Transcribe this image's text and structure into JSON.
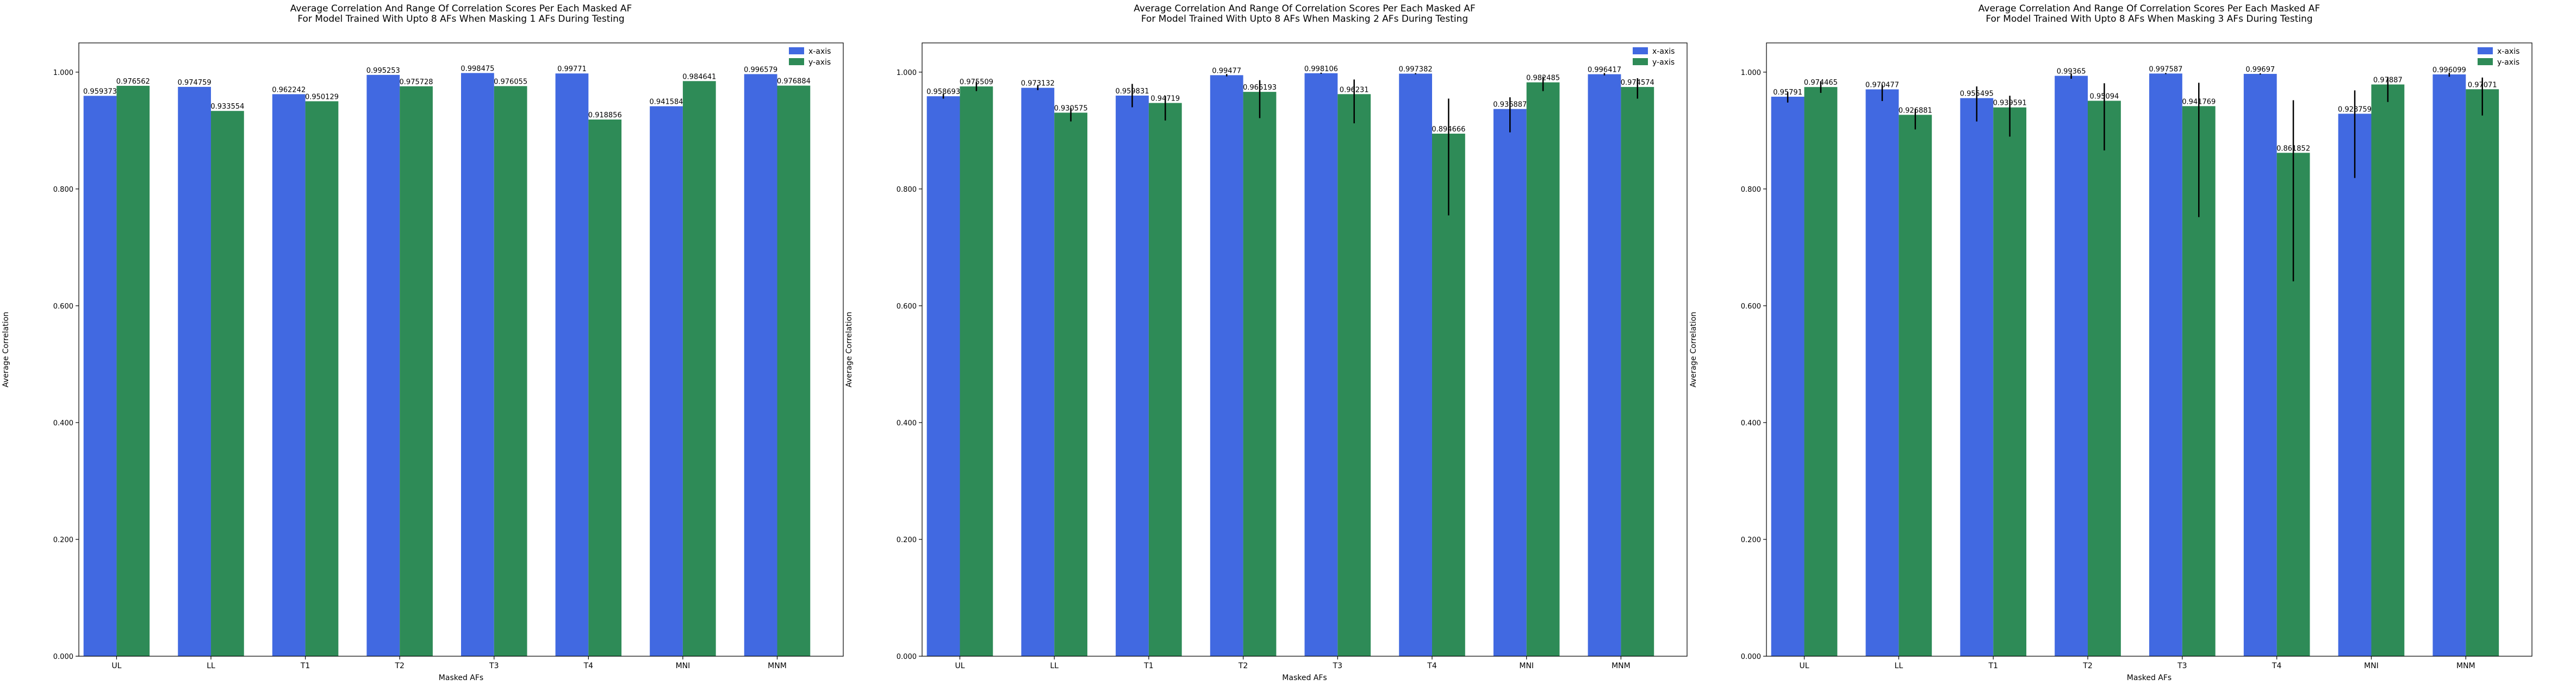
{
  "chart_data": [
    {
      "type": "bar",
      "title": "Average Correlation And Range Of Correlation Scores Per Each Masked AF\nFor Model Trained With Upto 8 AFs When Masking 1 AFs During Testing",
      "xlabel": "Masked AFs",
      "ylabel": "Average Correlation",
      "categories": [
        "UL",
        "LL",
        "T1",
        "T2",
        "T3",
        "T4",
        "MNI",
        "MNM"
      ],
      "ylim": [
        0,
        1.05
      ],
      "yticks": [
        "0.000",
        "0.200",
        "0.400",
        "0.600",
        "0.800",
        "1.000"
      ],
      "legend_position": "top-right",
      "grid": false,
      "series": [
        {
          "name": "x-axis",
          "color": "#4169e1",
          "values": [
            0.959373,
            0.974759,
            0.962242,
            0.995253,
            0.998475,
            0.99771,
            0.941584,
            0.996579
          ],
          "labels": [
            "0.959373",
            "0.974759",
            "0.962242",
            "0.995253",
            "0.998475",
            "0.99771",
            "0.941584",
            "0.996579"
          ],
          "err_low": [
            0,
            0,
            0,
            0,
            0,
            0,
            0,
            0
          ],
          "err_high": [
            0,
            0,
            0,
            0,
            0,
            0,
            0,
            0
          ]
        },
        {
          "name": "y-axis",
          "color": "#2e8b57",
          "values": [
            0.976562,
            0.933554,
            0.950129,
            0.975728,
            0.976055,
            0.918856,
            0.984641,
            0.976884
          ],
          "labels": [
            "0.976562",
            "0.933554",
            "0.950129",
            "0.975728",
            "0.976055",
            "0.918856",
            "0.984641",
            "0.976884"
          ],
          "err_low": [
            0,
            0,
            0,
            0,
            0,
            0,
            0,
            0
          ],
          "err_high": [
            0,
            0,
            0,
            0,
            0,
            0,
            0,
            0
          ]
        }
      ]
    },
    {
      "type": "bar",
      "title": "Average Correlation And Range Of Correlation Scores Per Each Masked AF\nFor Model Trained With Upto 8 AFs When Masking 2 AFs During Testing",
      "xlabel": "Masked AFs",
      "ylabel": "Average Correlation",
      "categories": [
        "UL",
        "LL",
        "T1",
        "T2",
        "T3",
        "T4",
        "MNI",
        "MNM"
      ],
      "ylim": [
        0,
        1.05
      ],
      "yticks": [
        "0.000",
        "0.200",
        "0.400",
        "0.600",
        "0.800",
        "1.000"
      ],
      "legend_position": "top-right",
      "grid": false,
      "series": [
        {
          "name": "x-axis",
          "color": "#4169e1",
          "values": [
            0.958693,
            0.973132,
            0.959831,
            0.99477,
            0.998106,
            0.997382,
            0.936887,
            0.996417
          ],
          "labels": [
            "0.958693",
            "0.973132",
            "0.959831",
            "0.99477",
            "0.998106",
            "0.997382",
            "0.936887",
            "0.996417"
          ],
          "err_low": [
            0.004,
            0.004,
            0.02,
            0.002,
            0.001,
            0.001,
            0.04,
            0.002
          ],
          "err_high": [
            0.004,
            0.004,
            0.02,
            0.002,
            0.001,
            0.001,
            0.02,
            0.002
          ]
        },
        {
          "name": "y-axis",
          "color": "#2e8b57",
          "values": [
            0.975509,
            0.930575,
            0.94719,
            0.966193,
            0.96231,
            0.894666,
            0.982485,
            0.974574
          ],
          "labels": [
            "0.975509",
            "0.930575",
            "0.94719",
            "0.966193",
            "0.96231",
            "0.894666",
            "0.982485",
            "0.974574"
          ],
          "err_low": [
            0.008,
            0.015,
            0.03,
            0.045,
            0.05,
            0.14,
            0.015,
            0.02
          ],
          "err_high": [
            0.008,
            0.008,
            0.012,
            0.02,
            0.025,
            0.06,
            0.01,
            0.015
          ]
        }
      ]
    },
    {
      "type": "bar",
      "title": "Average Correlation And Range Of Correlation Scores Per Each Masked AF\nFor Model Trained With Upto 8 AFs When Masking 3 AFs During Testing",
      "xlabel": "Masked AFs",
      "ylabel": "Average Correlation",
      "categories": [
        "UL",
        "LL",
        "T1",
        "T2",
        "T3",
        "T4",
        "MNI",
        "MNM"
      ],
      "ylim": [
        0,
        1.05
      ],
      "yticks": [
        "0.000",
        "0.200",
        "0.400",
        "0.600",
        "0.800",
        "1.000"
      ],
      "legend_position": "top-right",
      "grid": false,
      "series": [
        {
          "name": "x-axis",
          "color": "#4169e1",
          "values": [
            0.95791,
            0.970477,
            0.955495,
            0.99365,
            0.997587,
            0.99697,
            0.928759,
            0.996099
          ],
          "labels": [
            "0.95791",
            "0.970477",
            "0.955495",
            "0.99365",
            "0.997587",
            "0.99697",
            "0.928759",
            "0.996099"
          ],
          "err_low": [
            0.01,
            0.02,
            0.04,
            0.005,
            0.001,
            0.001,
            0.11,
            0.004
          ],
          "err_high": [
            0.008,
            0.008,
            0.02,
            0.004,
            0.001,
            0.001,
            0.04,
            0.003
          ]
        },
        {
          "name": "y-axis",
          "color": "#2e8b57",
          "values": [
            0.974465,
            0.926881,
            0.939591,
            0.95094,
            0.941769,
            0.861852,
            0.97887,
            0.97071
          ],
          "labels": [
            "0.974465",
            "0.926881",
            "0.939591",
            "0.95094",
            "0.941769",
            "0.861852",
            "0.97887",
            "0.97071"
          ],
          "err_low": [
            0.01,
            0.025,
            0.05,
            0.085,
            0.19,
            0.22,
            0.03,
            0.045
          ],
          "err_high": [
            0.01,
            0.01,
            0.02,
            0.03,
            0.04,
            0.09,
            0.012,
            0.02
          ]
        }
      ]
    }
  ]
}
